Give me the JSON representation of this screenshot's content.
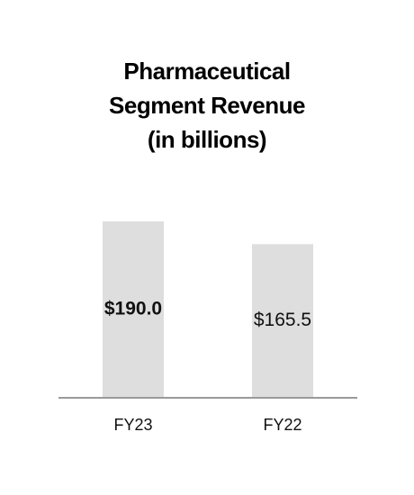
{
  "chart_data": {
    "type": "bar",
    "title": "Pharmaceutical Segment Revenue (in billions)",
    "categories": [
      "FY23",
      "FY22"
    ],
    "values": [
      190.0,
      165.5
    ],
    "value_labels": [
      "$190.0",
      "$165.5"
    ],
    "value_label_bold": [
      true,
      false
    ],
    "color": "#dedede",
    "axis_color": "#9a9a9a"
  }
}
